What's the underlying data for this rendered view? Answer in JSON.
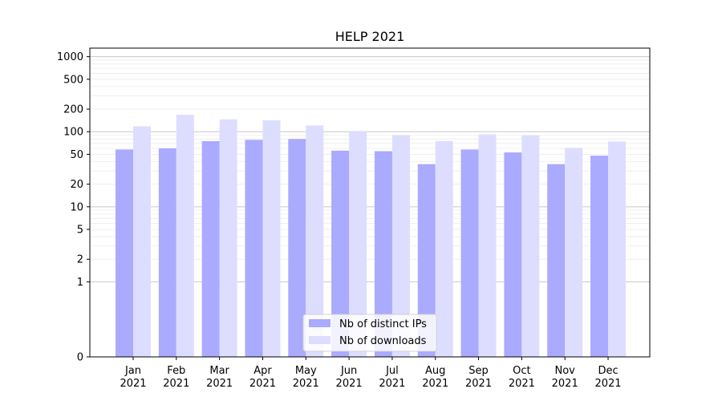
{
  "chart_data": {
    "type": "bar",
    "title": "HELP 2021",
    "xlabel": "",
    "ylabel": "",
    "y_scale": "symlog",
    "ylim": [
      0,
      1300
    ],
    "y_ticks": [
      0,
      1,
      2,
      5,
      10,
      20,
      50,
      100,
      200,
      500,
      1000
    ],
    "categories": [
      "Jan\n2021",
      "Feb\n2021",
      "Mar\n2021",
      "Apr\n2021",
      "May\n2021",
      "Jun\n2021",
      "Jul\n2021",
      "Aug\n2021",
      "Sep\n2021",
      "Oct\n2021",
      "Nov\n2021",
      "Dec\n2021"
    ],
    "category_lines": [
      [
        "Jan",
        "2021"
      ],
      [
        "Feb",
        "2021"
      ],
      [
        "Mar",
        "2021"
      ],
      [
        "Apr",
        "2021"
      ],
      [
        "May",
        "2021"
      ],
      [
        "Jun",
        "2021"
      ],
      [
        "Jul",
        "2021"
      ],
      [
        "Aug",
        "2021"
      ],
      [
        "Sep",
        "2021"
      ],
      [
        "Oct",
        "2021"
      ],
      [
        "Nov",
        "2021"
      ],
      [
        "Dec",
        "2021"
      ]
    ],
    "series": [
      {
        "name": "Nb of distinct IPs",
        "color": "#aaaaff",
        "values": [
          58,
          60,
          75,
          78,
          80,
          56,
          55,
          37,
          58,
          53,
          37,
          48
        ]
      },
      {
        "name": "Nb of downloads",
        "color": "#ddddff",
        "values": [
          118,
          168,
          146,
          142,
          121,
          102,
          90,
          75,
          92,
          89,
          61,
          74
        ]
      }
    ],
    "grid": true,
    "legend_position": "bottom-center"
  }
}
